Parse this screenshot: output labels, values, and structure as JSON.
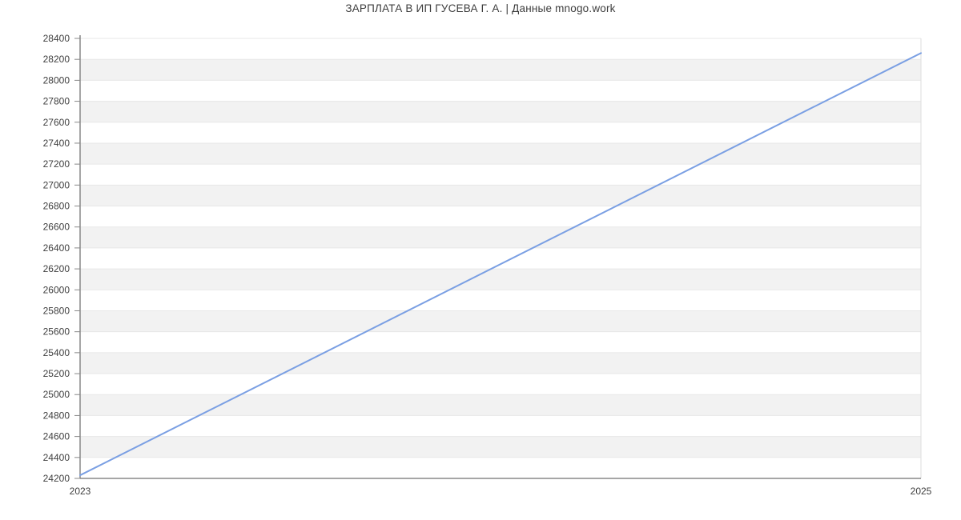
{
  "chart_data": {
    "type": "line",
    "title": "ЗАРПЛАТА В ИП ГУСЕВА Г. А. | Данные mnogo.work",
    "xlabel": "",
    "ylabel": "",
    "xlim": [
      2023,
      2025
    ],
    "ylim": [
      24200,
      28400
    ],
    "xticks": [
      2023,
      2025
    ],
    "xtick_labels": [
      "2023",
      "2025"
    ],
    "yticks": [
      24200,
      24400,
      24600,
      24800,
      25000,
      25200,
      25400,
      25600,
      25800,
      26000,
      26200,
      26400,
      26600,
      26800,
      27000,
      27200,
      27400,
      27600,
      27800,
      28000,
      28200,
      28400
    ],
    "x": [
      2023,
      2025
    ],
    "y": [
      24230,
      28260
    ],
    "grid": "horizontal gridlines every 200 with alternating shaded bands",
    "legend": "none",
    "colors": {
      "line": "#7a9fe3",
      "band": "#f2f2f2",
      "gridline": "#e7e7e7",
      "axis": "#888888",
      "tick_text": "#3f3f3f",
      "background": "#ffffff"
    }
  }
}
